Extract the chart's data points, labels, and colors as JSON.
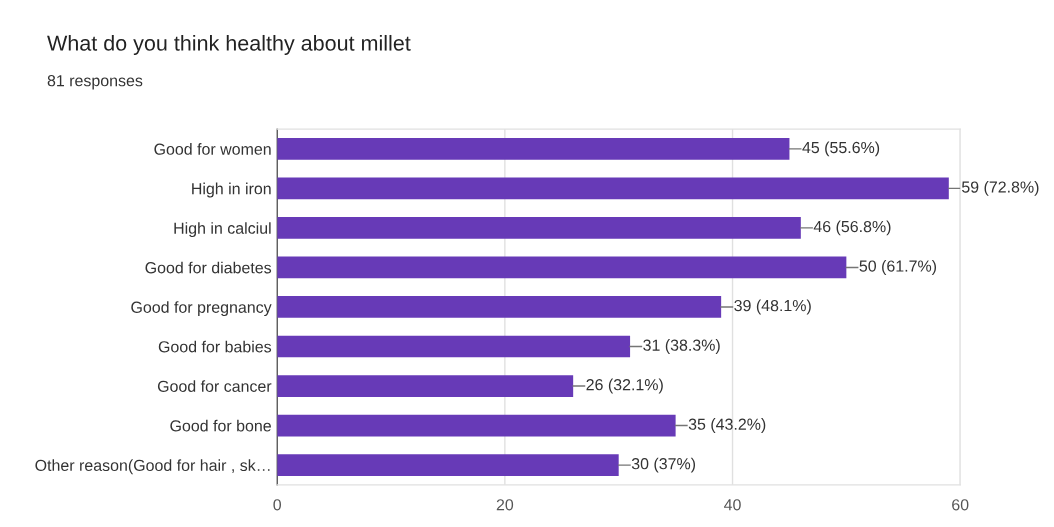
{
  "chart_data": {
    "type": "bar",
    "orientation": "horizontal",
    "title": "What do you think healthy about millet",
    "subtitle": "81 responses",
    "categories": [
      "Good for women",
      "High in iron",
      "High in calciul",
      "Good for diabetes",
      "Good for pregnancy",
      "Good for babies",
      "Good for cancer",
      "Good for bone",
      "Other reason(Good for hair , sk…"
    ],
    "values": [
      45,
      59,
      46,
      50,
      39,
      31,
      26,
      35,
      30
    ],
    "value_labels": [
      "45 (55.6%)",
      "59 (72.8%)",
      "46 (56.8%)",
      "50 (61.7%)",
      "39 (48.1%)",
      "31 (38.3%)",
      "26 (32.1%)",
      "35 (43.2%)",
      "30 (37%)"
    ],
    "color": "#673ab7",
    "xlim": [
      0,
      60
    ],
    "xticks": [
      0,
      20,
      40,
      60
    ],
    "grid": "x"
  }
}
